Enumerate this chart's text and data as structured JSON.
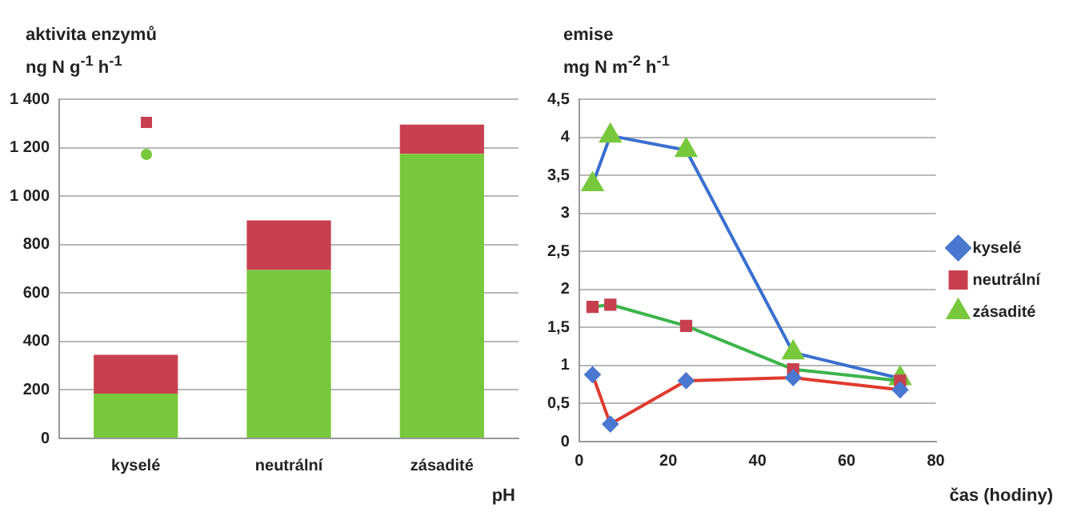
{
  "chart_data": [
    {
      "type": "bar",
      "stacked": true,
      "ylabel": "aktivita enzymů\nng N g$^{-1}$ h$^{-1}$",
      "xlabel": "pH",
      "categories": [
        "kyselé",
        "neutrální",
        "zásadité"
      ],
      "series": [
        {
          "color": "#78c83c",
          "values": [
            185,
            695,
            1175
          ]
        },
        {
          "color": "#c8404f",
          "values": [
            160,
            205,
            120
          ]
        }
      ],
      "ylim": [
        0,
        1400
      ],
      "yticks": [
        0,
        200,
        400,
        600,
        800,
        {
          "value": 1000,
          "label": "1 000"
        },
        {
          "value": 1200,
          "label": "1 200"
        },
        {
          "value": 1400,
          "label": "1 400"
        }
      ],
      "grid": "y"
    },
    {
      "type": "line",
      "ylabel": "emise\nmg N m$^{-2}$ h$^{-1}$",
      "xlabel": "čas (hodiny)",
      "x": [
        3,
        7,
        24,
        48,
        72
      ],
      "series": [
        {
          "name": "kyselé",
          "color": "#e03a2e",
          "colors": [
            "#4a78d0",
            "#4a78d0",
            "#4a78d0",
            "#4a78d0",
            "#4a78d0"
          ],
          "marker": "diamond",
          "values": [
            0.88,
            0.23,
            0.8,
            0.84,
            0.68
          ]
        },
        {
          "name": "neutrální",
          "color": "#3cb44b",
          "colors": [
            "#c8404f",
            "#c8404f",
            "#c8404f",
            "#c8404f",
            "#c8404f"
          ],
          "marker": "square",
          "values": [
            1.77,
            1.8,
            1.52,
            0.95,
            0.8
          ]
        },
        {
          "name": "zásadité",
          "color": "#3a6fd0",
          "colors": [
            "#78c83c",
            "#78c83c",
            "#78c83c",
            "#78c83c",
            "#78c83c"
          ],
          "marker": "triangle",
          "values": [
            3.38,
            4.02,
            3.83,
            1.17,
            0.83
          ]
        }
      ],
      "xlim": [
        0,
        80
      ],
      "xticks": [
        0,
        20,
        40,
        60,
        80
      ],
      "ylim": [
        0,
        4.5
      ],
      "yticks": [
        0,
        {
          "value": 0.5,
          "label": "0,5"
        },
        1,
        {
          "value": 1.5,
          "label": "1,5"
        },
        2,
        {
          "value": 2.5,
          "label": "2,5"
        },
        3,
        {
          "value": 3.5,
          "label": "3,5"
        },
        4,
        {
          "value": 4.5,
          "label": "4,5"
        }
      ],
      "grid": "y",
      "legend": "right",
      "line_style": "solid"
    }
  ]
}
